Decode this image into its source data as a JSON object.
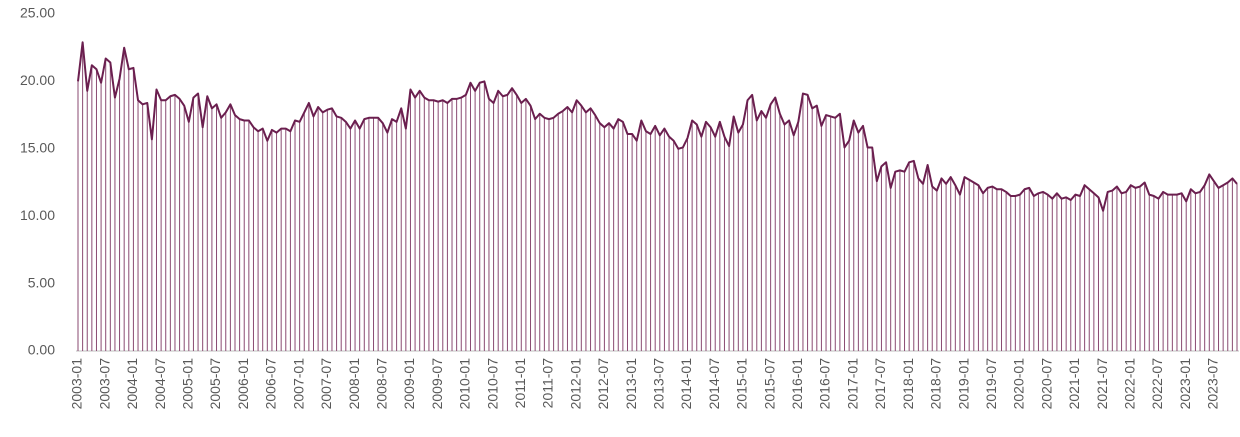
{
  "chart_data": {
    "type": "line-drop",
    "color": "#6b1f4f",
    "drop_color": "#8a4a72",
    "ylim": [
      0,
      25
    ],
    "yticks": [
      {
        "value": 0,
        "label": "0.00"
      },
      {
        "value": 5,
        "label": "5.00"
      },
      {
        "value": 10,
        "label": "10.00"
      },
      {
        "value": 15,
        "label": "15.00"
      },
      {
        "value": 20,
        "label": "20.00"
      },
      {
        "value": 25,
        "label": "25.00"
      }
    ],
    "categories": [
      "2003-01",
      null,
      null,
      null,
      null,
      null,
      "2003-07",
      null,
      null,
      null,
      null,
      null,
      "2004-01",
      null,
      null,
      null,
      null,
      null,
      "2004-07",
      null,
      null,
      null,
      null,
      null,
      "2005-01",
      null,
      null,
      null,
      null,
      null,
      "2005-07",
      null,
      null,
      null,
      null,
      null,
      "2006-01",
      null,
      null,
      null,
      null,
      null,
      "2006-07",
      null,
      null,
      null,
      null,
      null,
      "2007-01",
      null,
      null,
      null,
      null,
      null,
      "2007-07",
      null,
      null,
      null,
      null,
      null,
      "2008-01",
      null,
      null,
      null,
      null,
      null,
      "2008-07",
      null,
      null,
      null,
      null,
      null,
      "2009-01",
      null,
      null,
      null,
      null,
      null,
      "2009-07",
      null,
      null,
      null,
      null,
      null,
      "2010-01",
      null,
      null,
      null,
      null,
      null,
      "2010-07",
      null,
      null,
      null,
      null,
      null,
      "2011-01",
      null,
      null,
      null,
      null,
      null,
      "2011-07",
      null,
      null,
      null,
      null,
      null,
      "2012-01",
      null,
      null,
      null,
      null,
      null,
      "2012-07",
      null,
      null,
      null,
      null,
      null,
      "2013-01",
      null,
      null,
      null,
      null,
      null,
      "2013-07",
      null,
      null,
      null,
      null,
      null,
      "2014-01",
      null,
      null,
      null,
      null,
      null,
      "2014-07",
      null,
      null,
      null,
      null,
      null,
      "2015-01",
      null,
      null,
      null,
      null,
      null,
      "2015-07",
      null,
      null,
      null,
      null,
      null,
      "2016-01",
      null,
      null,
      null,
      null,
      null,
      "2016-07",
      null,
      null,
      null,
      null,
      null,
      "2017-01",
      null,
      null,
      null,
      null,
      null,
      "2017-07",
      null,
      null,
      null,
      null,
      null,
      "2018-01",
      null,
      null,
      null,
      null,
      null,
      "2018-07",
      null,
      null,
      null,
      null,
      null,
      "2019-01",
      null,
      null,
      null,
      null,
      null,
      "2019-07",
      null,
      null,
      null,
      null,
      null,
      "2020-01",
      null,
      null,
      null,
      null,
      null,
      "2020-07",
      null,
      null,
      null,
      null,
      null,
      "2021-01",
      null,
      null,
      null,
      null,
      null,
      "2021-07",
      null,
      null,
      null,
      null,
      null,
      "2022-01",
      null,
      null,
      null,
      null,
      null,
      "2022-07",
      null,
      null,
      null,
      null,
      null,
      "2023-01",
      null,
      null,
      null,
      null,
      null,
      "2023-07",
      null,
      null,
      null,
      null,
      null
    ],
    "values": [
      20.0,
      22.9,
      19.3,
      21.2,
      20.9,
      19.9,
      21.7,
      21.4,
      18.8,
      20.2,
      22.5,
      20.9,
      21.0,
      18.6,
      18.3,
      18.4,
      15.7,
      19.4,
      18.6,
      18.6,
      18.9,
      19.0,
      18.7,
      18.2,
      17.0,
      18.8,
      19.1,
      16.6,
      18.9,
      18.0,
      18.3,
      17.3,
      17.7,
      18.3,
      17.5,
      17.2,
      17.1,
      17.1,
      16.6,
      16.3,
      16.5,
      15.6,
      16.4,
      16.2,
      16.5,
      16.5,
      16.3,
      17.1,
      17.0,
      17.7,
      18.4,
      17.4,
      18.1,
      17.7,
      17.9,
      18.0,
      17.4,
      17.3,
      17.0,
      16.5,
      17.1,
      16.5,
      17.2,
      17.3,
      17.3,
      17.3,
      16.9,
      16.2,
      17.2,
      17.0,
      18.0,
      16.5,
      19.4,
      18.8,
      19.3,
      18.8,
      18.6,
      18.6,
      18.5,
      18.6,
      18.4,
      18.7,
      18.7,
      18.8,
      19.0,
      19.9,
      19.3,
      19.9,
      20.0,
      18.7,
      18.4,
      19.3,
      18.9,
      19.0,
      19.5,
      19.0,
      18.4,
      18.7,
      18.2,
      17.2,
      17.6,
      17.3,
      17.2,
      17.3,
      17.6,
      17.8,
      18.1,
      17.7,
      18.6,
      18.2,
      17.7,
      18.0,
      17.5,
      16.9,
      16.6,
      16.9,
      16.5,
      17.2,
      17.0,
      16.1,
      16.1,
      15.6,
      17.1,
      16.3,
      16.1,
      16.7,
      16.0,
      16.5,
      15.9,
      15.6,
      15.0,
      15.1,
      15.8,
      17.1,
      16.8,
      15.9,
      17.0,
      16.6,
      15.9,
      17.0,
      15.9,
      15.2,
      17.4,
      16.2,
      16.8,
      18.6,
      19.0,
      17.1,
      17.8,
      17.3,
      18.3,
      18.8,
      17.6,
      16.8,
      17.1,
      16.0,
      17.0,
      19.1,
      19.0,
      18.0,
      18.2,
      16.7,
      17.5,
      17.4,
      17.3,
      17.6,
      15.1,
      15.6,
      17.1,
      16.2,
      16.7,
      15.1,
      15.1,
      12.6,
      13.7,
      14.0,
      12.1,
      13.3,
      13.4,
      13.3,
      14.0,
      14.1,
      12.8,
      12.4,
      13.8,
      12.2,
      11.9,
      12.8,
      12.4,
      12.9,
      12.3,
      11.6,
      12.9,
      12.7,
      12.5,
      12.3,
      11.7,
      12.1,
      12.2,
      12.0,
      12.0,
      11.8,
      11.5,
      11.5,
      11.6,
      12.0,
      12.1,
      11.5,
      11.7,
      11.8,
      11.6,
      11.3,
      11.7,
      11.3,
      11.4,
      11.2,
      11.6,
      11.5,
      12.3,
      12.0,
      11.7,
      11.4,
      10.4,
      11.8,
      11.9,
      12.2,
      11.7,
      11.8,
      12.3,
      12.1,
      12.2,
      12.5,
      11.6,
      11.5,
      11.3,
      11.8,
      11.6,
      11.6,
      11.6,
      11.7,
      11.1,
      12.0,
      11.7,
      11.8,
      12.3,
      13.1,
      12.6,
      12.1,
      12.3,
      12.5,
      12.8,
      12.4
    ]
  }
}
